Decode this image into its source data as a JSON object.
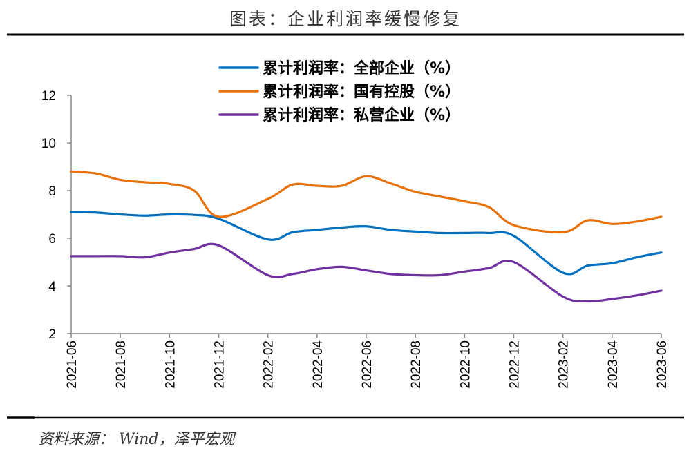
{
  "title": "图表：企业利润率缓慢修复",
  "source": "资料来源：  Wind，泽平宏观",
  "chart_data": {
    "type": "line",
    "title": "图表：企业利润率缓慢修复",
    "xlabel": "",
    "ylabel": "",
    "ylim": [
      2,
      12
    ],
    "yticks": [
      "2",
      "4",
      "6",
      "8",
      "10",
      "12"
    ],
    "xticks": [
      "2021-06",
      "2021-08",
      "2021-10",
      "2021-12",
      "2022-02",
      "2022-04",
      "2022-06",
      "2022-08",
      "2022-10",
      "2022-12",
      "2023-02",
      "2023-04",
      "2023-06"
    ],
    "x": [
      "2021-06",
      "2021-07",
      "2021-08",
      "2021-09",
      "2021-10",
      "2021-11",
      "2021-12",
      "2022-02",
      "2022-03",
      "2022-04",
      "2022-05",
      "2022-06",
      "2022-07",
      "2022-08",
      "2022-09",
      "2022-10",
      "2022-11",
      "2022-12",
      "2023-02",
      "2023-03",
      "2023-04",
      "2023-05",
      "2023-06"
    ],
    "legend_position": "top-center",
    "grid": false,
    "series": [
      {
        "name": "累计利润率：全部企业（%）",
        "color": "#0070C0",
        "values": [
          7.1,
          7.08,
          7.0,
          6.95,
          7.0,
          6.98,
          6.82,
          5.95,
          6.25,
          6.35,
          6.45,
          6.5,
          6.35,
          6.28,
          6.22,
          6.22,
          6.22,
          6.1,
          4.55,
          4.85,
          4.95,
          5.2,
          5.4
        ]
      },
      {
        "name": "累计利润率：国有控股（%）",
        "color": "#E8710A",
        "values": [
          8.8,
          8.72,
          8.45,
          8.35,
          8.28,
          8.0,
          6.9,
          7.65,
          8.25,
          8.2,
          8.2,
          8.6,
          8.3,
          7.95,
          7.75,
          7.55,
          7.3,
          6.55,
          6.25,
          6.75,
          6.6,
          6.7,
          6.9
        ]
      },
      {
        "name": "累计利润率：私营企业（%）",
        "color": "#7030A0",
        "values": [
          5.25,
          5.25,
          5.25,
          5.2,
          5.4,
          5.55,
          5.7,
          4.45,
          4.5,
          4.7,
          4.8,
          4.65,
          4.5,
          4.45,
          4.45,
          4.6,
          4.75,
          5.0,
          3.55,
          3.35,
          3.45,
          3.6,
          3.8
        ]
      }
    ]
  }
}
